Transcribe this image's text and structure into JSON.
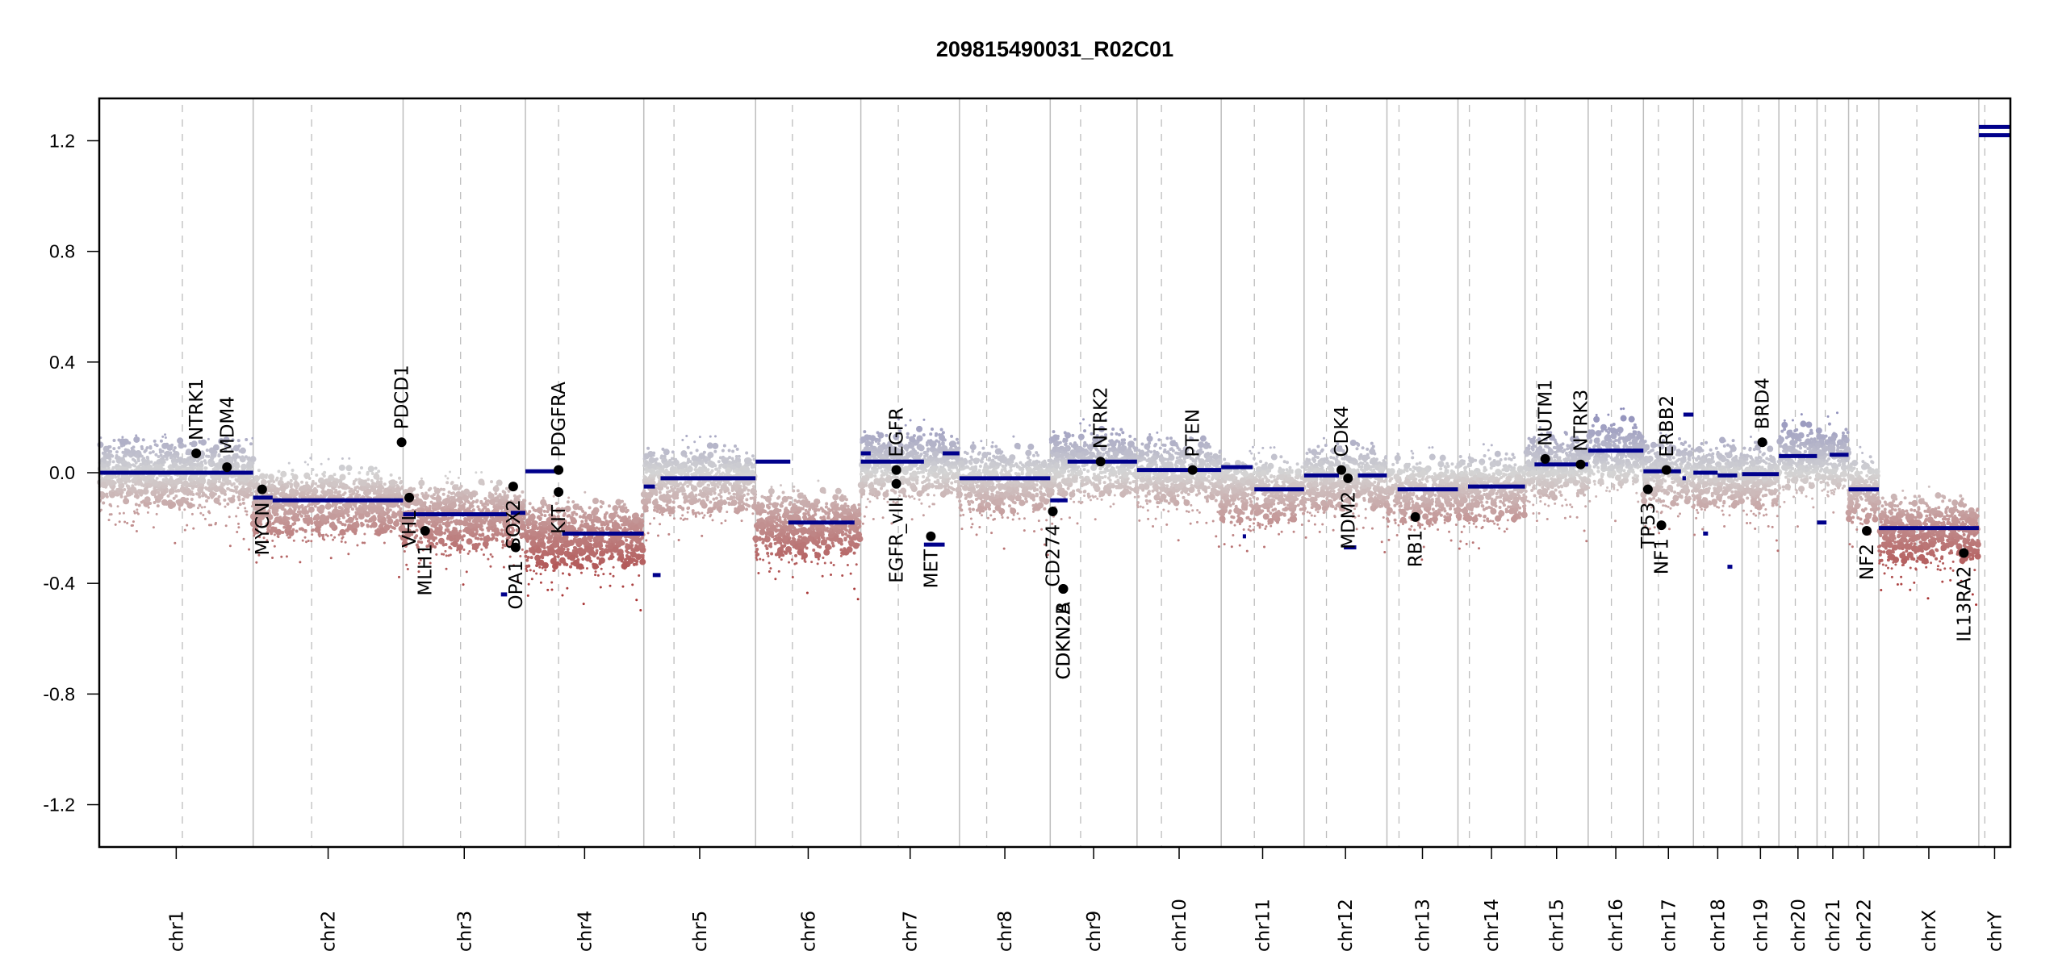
{
  "chart_data": {
    "type": "scatter",
    "title": "209815490031_R02C01",
    "xlabel": "",
    "ylabel": "",
    "ylim": [
      -1.353,
      1.353
    ],
    "yticks": [
      {
        "value": 1.2,
        "label": "1.2"
      },
      {
        "value": 0.8,
        "label": "0.8"
      },
      {
        "value": 0.4,
        "label": "0.4"
      },
      {
        "value": 0.0,
        "label": "0.0"
      },
      {
        "value": -0.4,
        "label": "-0.4"
      },
      {
        "value": -0.8,
        "label": "-0.8"
      },
      {
        "value": -1.2,
        "label": "-1.2"
      }
    ],
    "grid": "chromosome boundaries (solid) and centromeres (dashed)",
    "colors": {
      "gain": "#8585b8",
      "neutral": "#d4d4d4",
      "loss": "#a83232",
      "segment": "#00008b",
      "gene_point": "#000000",
      "boundary": "#bdbdbd",
      "centromere": "#bdbdbd"
    },
    "chromosomes": [
      {
        "name": "chr1",
        "length": 117,
        "centromere": 0.54
      },
      {
        "name": "chr2",
        "length": 114,
        "centromere": 0.39
      },
      {
        "name": "chr3",
        "length": 93,
        "centromere": 0.47
      },
      {
        "name": "chr4",
        "length": 90,
        "centromere": 0.28
      },
      {
        "name": "chr5",
        "length": 85,
        "centromere": 0.27
      },
      {
        "name": "chr6",
        "length": 80,
        "centromere": 0.35
      },
      {
        "name": "chr7",
        "length": 75,
        "centromere": 0.38
      },
      {
        "name": "chr8",
        "length": 69,
        "centromere": 0.3
      },
      {
        "name": "chr9",
        "length": 66,
        "centromere": 0.35
      },
      {
        "name": "chr10",
        "length": 64,
        "centromere": 0.29
      },
      {
        "name": "chr11",
        "length": 63,
        "centromere": 0.4
      },
      {
        "name": "chr12",
        "length": 63,
        "centromere": 0.27
      },
      {
        "name": "chr13",
        "length": 54,
        "centromere": 0.17
      },
      {
        "name": "chr14",
        "length": 51,
        "centromere": 0.17
      },
      {
        "name": "chr15",
        "length": 48,
        "centromere": 0.18
      },
      {
        "name": "chr16",
        "length": 42,
        "centromere": 0.42
      },
      {
        "name": "chr17",
        "length": 38,
        "centromere": 0.3
      },
      {
        "name": "chr18",
        "length": 37,
        "centromere": 0.21
      },
      {
        "name": "chr19",
        "length": 28,
        "centromere": 0.45
      },
      {
        "name": "chr20",
        "length": 29,
        "centromere": 0.43
      },
      {
        "name": "chr21",
        "length": 24,
        "centromere": 0.26
      },
      {
        "name": "chr22",
        "length": 23,
        "centromere": 0.28
      },
      {
        "name": "chrX",
        "length": 76,
        "centromere": 0.38
      },
      {
        "name": "chrY",
        "length": 24,
        "centromere": 0.19
      }
    ],
    "segments": [
      {
        "chr": "chr1",
        "start": 0.0,
        "end": 1.0,
        "value": 0.0
      },
      {
        "chr": "chr2",
        "start": 0.0,
        "end": 0.13,
        "value": -0.09
      },
      {
        "chr": "chr2",
        "start": 0.13,
        "end": 1.0,
        "value": -0.1
      },
      {
        "chr": "chr3",
        "start": 0.0,
        "end": 0.85,
        "value": -0.15
      },
      {
        "chr": "chr3",
        "start": 0.8,
        "end": 0.85,
        "value": -0.44
      },
      {
        "chr": "chr3",
        "start": 0.88,
        "end": 1.0,
        "value": -0.145
      },
      {
        "chr": "chr4",
        "start": 0.0,
        "end": 0.29,
        "value": 0.005
      },
      {
        "chr": "chr4",
        "start": 0.31,
        "end": 1.0,
        "value": -0.22
      },
      {
        "chr": "chr5",
        "start": 0.0,
        "end": 0.1,
        "value": -0.05
      },
      {
        "chr": "chr5",
        "start": 0.08,
        "end": 0.15,
        "value": -0.37
      },
      {
        "chr": "chr5",
        "start": 0.15,
        "end": 1.0,
        "value": -0.02
      },
      {
        "chr": "chr6",
        "start": 0.0,
        "end": 0.33,
        "value": 0.04
      },
      {
        "chr": "chr6",
        "start": 0.31,
        "end": 0.94,
        "value": -0.18
      },
      {
        "chr": "chr7",
        "start": 0.0,
        "end": 0.1,
        "value": 0.07
      },
      {
        "chr": "chr7",
        "start": 0.0,
        "end": 0.64,
        "value": 0.04
      },
      {
        "chr": "chr7",
        "start": 0.64,
        "end": 0.85,
        "value": -0.26
      },
      {
        "chr": "chr7",
        "start": 0.83,
        "end": 1.0,
        "value": 0.07
      },
      {
        "chr": "chr8",
        "start": 0.0,
        "end": 1.0,
        "value": -0.02
      },
      {
        "chr": "chr9",
        "start": 0.0,
        "end": 0.2,
        "value": -0.1
      },
      {
        "chr": "chr9",
        "start": 0.2,
        "end": 1.0,
        "value": 0.04
      },
      {
        "chr": "chr10",
        "start": 0.0,
        "end": 1.0,
        "value": 0.01
      },
      {
        "chr": "chr11",
        "start": 0.0,
        "end": 0.38,
        "value": 0.02
      },
      {
        "chr": "chr11",
        "start": 0.26,
        "end": 0.3,
        "value": -0.23
      },
      {
        "chr": "chr11",
        "start": 0.4,
        "end": 1.0,
        "value": -0.06
      },
      {
        "chr": "chr12",
        "start": 0.0,
        "end": 0.42,
        "value": -0.01
      },
      {
        "chr": "chr12",
        "start": 0.48,
        "end": 0.63,
        "value": -0.27
      },
      {
        "chr": "chr12",
        "start": 0.65,
        "end": 1.0,
        "value": -0.01
      },
      {
        "chr": "chr13",
        "start": 0.15,
        "end": 1.0,
        "value": -0.06
      },
      {
        "chr": "chr14",
        "start": 0.15,
        "end": 1.0,
        "value": -0.05
      },
      {
        "chr": "chr15",
        "start": 0.15,
        "end": 1.0,
        "value": 0.03
      },
      {
        "chr": "chr16",
        "start": 0.0,
        "end": 1.0,
        "value": 0.08
      },
      {
        "chr": "chr17",
        "start": 0.0,
        "end": 0.75,
        "value": 0.005
      },
      {
        "chr": "chr17",
        "start": 0.78,
        "end": 0.85,
        "value": -0.02
      },
      {
        "chr": "chr17",
        "start": 0.8,
        "end": 1.0,
        "value": 0.21
      },
      {
        "chr": "chr18",
        "start": 0.0,
        "end": 0.5,
        "value": 0.0
      },
      {
        "chr": "chr18",
        "start": 0.5,
        "end": 0.9,
        "value": -0.01
      },
      {
        "chr": "chr18",
        "start": 0.7,
        "end": 0.8,
        "value": -0.34
      },
      {
        "chr": "chr18",
        "start": 0.2,
        "end": 0.3,
        "value": -0.22
      },
      {
        "chr": "chr19",
        "start": 0.0,
        "end": 1.0,
        "value": -0.005
      },
      {
        "chr": "chr20",
        "start": 0.0,
        "end": 1.0,
        "value": 0.06
      },
      {
        "chr": "chr21",
        "start": 0.0,
        "end": 0.3,
        "value": -0.18
      },
      {
        "chr": "chr21",
        "start": 0.4,
        "end": 1.0,
        "value": 0.065
      },
      {
        "chr": "chr22",
        "start": 0.0,
        "end": 1.0,
        "value": -0.06
      },
      {
        "chr": "chrX",
        "start": 0.0,
        "end": 1.0,
        "value": -0.2
      },
      {
        "chr": "chrY",
        "start": 0.0,
        "end": 1.0,
        "value": 1.25
      },
      {
        "chr": "chrY",
        "start": 0.0,
        "end": 1.0,
        "value": 1.22
      }
    ],
    "genes": [
      {
        "name": "NTRK1",
        "chr": "chr1",
        "pos": 0.63,
        "value": 0.07
      },
      {
        "name": "MDM4",
        "chr": "chr1",
        "pos": 0.83,
        "value": 0.02
      },
      {
        "name": "MYCN",
        "chr": "chr2",
        "pos": 0.06,
        "value": -0.06
      },
      {
        "name": "PDCD1",
        "chr": "chr2",
        "pos": 0.99,
        "value": 0.11
      },
      {
        "name": "VHL",
        "chr": "chr3",
        "pos": 0.05,
        "value": -0.09
      },
      {
        "name": "MLH1",
        "chr": "chr3",
        "pos": 0.18,
        "value": -0.21
      },
      {
        "name": "SOX2",
        "chr": "chr3",
        "pos": 0.9,
        "value": -0.05
      },
      {
        "name": "OPA1",
        "chr": "chr3",
        "pos": 0.92,
        "value": -0.27
      },
      {
        "name": "PDGFRA",
        "chr": "chr4",
        "pos": 0.28,
        "value": 0.01
      },
      {
        "name": "KIT",
        "chr": "chr4",
        "pos": 0.28,
        "value": -0.07
      },
      {
        "name": "EGFR",
        "chr": "chr7",
        "pos": 0.36,
        "value": 0.01
      },
      {
        "name": "EGFR_vIII",
        "chr": "chr7",
        "pos": 0.36,
        "value": -0.04
      },
      {
        "name": "MET",
        "chr": "chr7",
        "pos": 0.71,
        "value": -0.23
      },
      {
        "name": "CD274",
        "chr": "chr9",
        "pos": 0.03,
        "value": -0.14
      },
      {
        "name": "CDKN2A",
        "chr": "chr9",
        "pos": 0.15,
        "value": -0.42
      },
      {
        "name": "CDKN2B",
        "chr": "chr9",
        "pos": 0.15,
        "value": -0.42
      },
      {
        "name": "NTRK2",
        "chr": "chr9",
        "pos": 0.58,
        "value": 0.04
      },
      {
        "name": "PTEN",
        "chr": "chr10",
        "pos": 0.66,
        "value": 0.01
      },
      {
        "name": "CDK4",
        "chr": "chr12",
        "pos": 0.45,
        "value": 0.01
      },
      {
        "name": "MDM2",
        "chr": "chr12",
        "pos": 0.53,
        "value": -0.02
      },
      {
        "name": "RB1",
        "chr": "chr13",
        "pos": 0.4,
        "value": -0.16
      },
      {
        "name": "NUTM1",
        "chr": "chr15",
        "pos": 0.32,
        "value": 0.05
      },
      {
        "name": "NTRK3",
        "chr": "chr15",
        "pos": 0.88,
        "value": 0.03
      },
      {
        "name": "TP53",
        "chr": "chr17",
        "pos": 0.09,
        "value": -0.06
      },
      {
        "name": "NF1",
        "chr": "chr17",
        "pos": 0.36,
        "value": -0.19
      },
      {
        "name": "ERBB2",
        "chr": "chr17",
        "pos": 0.46,
        "value": 0.01
      },
      {
        "name": "BRD4",
        "chr": "chr19",
        "pos": 0.55,
        "value": 0.11
      },
      {
        "name": "NF2",
        "chr": "chr22",
        "pos": 0.6,
        "value": -0.21
      },
      {
        "name": "IL13RA2",
        "chr": "chrX",
        "pos": 0.85,
        "value": -0.29
      }
    ]
  }
}
